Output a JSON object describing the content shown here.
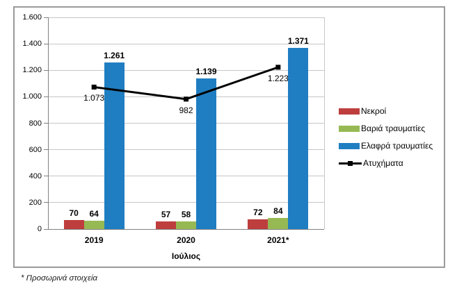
{
  "chart_data": {
    "type": "bar",
    "subtype": "grouped-bars-with-line-overlay",
    "title": "",
    "categories": [
      "2019",
      "2020",
      "2021*"
    ],
    "series": [
      {
        "key": "deaths",
        "name": "Νεκροί",
        "type": "bar",
        "color": "#BE3E3E",
        "values": [
          70,
          57,
          72
        ],
        "value_labels": [
          "70",
          "57",
          "72"
        ]
      },
      {
        "key": "severely-injured",
        "name": "Βαριά τραυματίες",
        "type": "bar",
        "color": "#97B954",
        "values": [
          64,
          58,
          84
        ],
        "value_labels": [
          "64",
          "58",
          "84"
        ]
      },
      {
        "key": "lightly-injured",
        "name": "Ελαφρά τραυματίες",
        "type": "bar",
        "color": "#1F7EC2",
        "values": [
          1261,
          1139,
          1371
        ],
        "value_labels": [
          "1.261",
          "1.139",
          "1.371"
        ]
      },
      {
        "key": "accidents",
        "name": "Ατυχήματα",
        "type": "line",
        "color": "#000000",
        "values": [
          1073,
          982,
          1223
        ],
        "value_labels": [
          "1.073",
          "982",
          "1.223"
        ]
      }
    ],
    "xlabel": "Ιούλιος",
    "ylabel": "",
    "ylim": [
      0,
      1600
    ],
    "yticks": [
      {
        "value": 0,
        "label": "0"
      },
      {
        "value": 200,
        "label": "200"
      },
      {
        "value": 400,
        "label": "400"
      },
      {
        "value": 600,
        "label": "600"
      },
      {
        "value": 800,
        "label": "800"
      },
      {
        "value": 1000,
        "label": "1.000"
      },
      {
        "value": 1200,
        "label": "1.200"
      },
      {
        "value": 1400,
        "label": "1.400"
      },
      {
        "value": 1600,
        "label": "1.600"
      }
    ],
    "grid": true,
    "legend_position": "right-middle"
  },
  "footnote": "* Προσωρινά στοιχεία",
  "colors": {
    "gridline": "#C6C6C6",
    "axis": "#808080",
    "frame_border": "#9A9A9A",
    "text": "#000000"
  }
}
